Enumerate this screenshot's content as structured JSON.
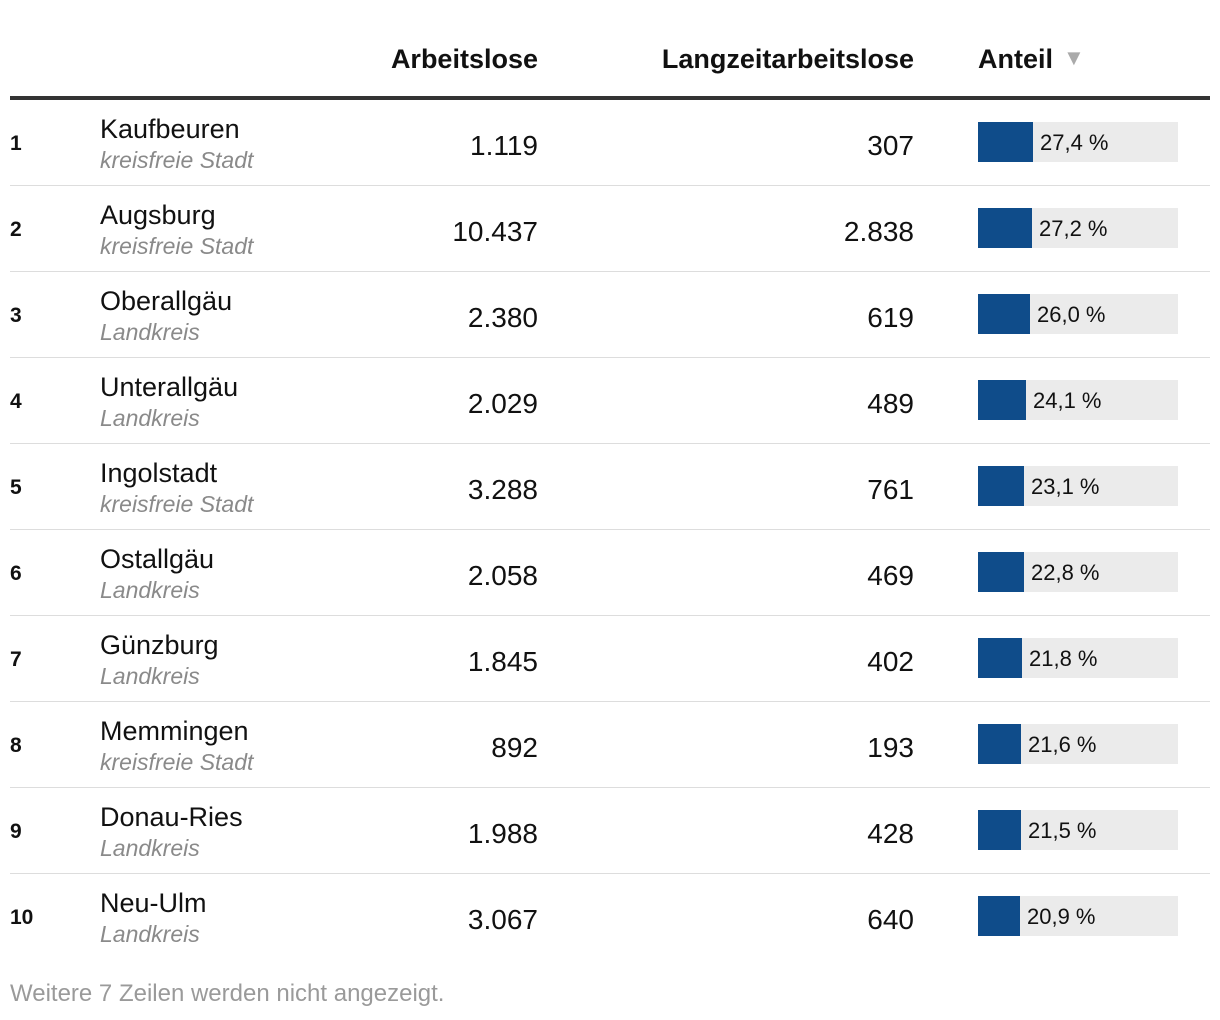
{
  "header": {
    "col_arbeitslose": "Arbeitslose",
    "col_langzeit": "Langzeitarbeitslose",
    "col_anteil": "Anteil",
    "sort_icon": "▼"
  },
  "colors": {
    "bar": "#0f4c8a",
    "track": "#ebebeb"
  },
  "rows": [
    {
      "rank": "1",
      "name": "Kaufbeuren",
      "type": "kreisfreie Stadt",
      "arbeitslose": "1.119",
      "langzeit": "307",
      "anteil_label": "27,4 %",
      "anteil_value": 27.4
    },
    {
      "rank": "2",
      "name": "Augsburg",
      "type": "kreisfreie Stadt",
      "arbeitslose": "10.437",
      "langzeit": "2.838",
      "anteil_label": "27,2 %",
      "anteil_value": 27.2
    },
    {
      "rank": "3",
      "name": "Oberallgäu",
      "type": "Landkreis",
      "arbeitslose": "2.380",
      "langzeit": "619",
      "anteil_label": "26,0 %",
      "anteil_value": 26.0
    },
    {
      "rank": "4",
      "name": "Unterallgäu",
      "type": "Landkreis",
      "arbeitslose": "2.029",
      "langzeit": "489",
      "anteil_label": "24,1 %",
      "anteil_value": 24.1
    },
    {
      "rank": "5",
      "name": "Ingolstadt",
      "type": "kreisfreie Stadt",
      "arbeitslose": "3.288",
      "langzeit": "761",
      "anteil_label": "23,1 %",
      "anteil_value": 23.1
    },
    {
      "rank": "6",
      "name": "Ostallgäu",
      "type": "Landkreis",
      "arbeitslose": "2.058",
      "langzeit": "469",
      "anteil_label": "22,8 %",
      "anteil_value": 22.8
    },
    {
      "rank": "7",
      "name": "Günzburg",
      "type": "Landkreis",
      "arbeitslose": "1.845",
      "langzeit": "402",
      "anteil_label": "21,8 %",
      "anteil_value": 21.8
    },
    {
      "rank": "8",
      "name": "Memmingen",
      "type": "kreisfreie Stadt",
      "arbeitslose": "892",
      "langzeit": "193",
      "anteil_label": "21,6 %",
      "anteil_value": 21.6
    },
    {
      "rank": "9",
      "name": "Donau-Ries",
      "type": "Landkreis",
      "arbeitslose": "1.988",
      "langzeit": "428",
      "anteil_label": "21,5 %",
      "anteil_value": 21.5
    },
    {
      "rank": "10",
      "name": "Neu-Ulm",
      "type": "Landkreis",
      "arbeitslose": "3.067",
      "langzeit": "640",
      "anteil_label": "20,9 %",
      "anteil_value": 20.9
    }
  ],
  "footnote": "Weitere 7 Zeilen werden nicht angezeigt.",
  "chart_data": {
    "type": "table",
    "columns": [
      "",
      "",
      "Arbeitslose",
      "Langzeitarbeitslose",
      "Anteil"
    ],
    "sort_column": "Anteil",
    "sort_order": "descending",
    "bar_scale_max": 100,
    "categories": [
      "Kaufbeuren",
      "Augsburg",
      "Oberallgäu",
      "Unterallgäu",
      "Ingolstadt",
      "Ostallgäu",
      "Günzburg",
      "Memmingen",
      "Donau-Ries",
      "Neu-Ulm"
    ],
    "series": [
      {
        "name": "Arbeitslose",
        "values": [
          1119,
          10437,
          2380,
          2029,
          3288,
          2058,
          1845,
          892,
          1988,
          3067
        ]
      },
      {
        "name": "Langzeitarbeitslose",
        "values": [
          307,
          2838,
          619,
          489,
          761,
          469,
          402,
          193,
          428,
          640
        ]
      },
      {
        "name": "Anteil",
        "values": [
          27.4,
          27.2,
          26.0,
          24.1,
          23.1,
          22.8,
          21.8,
          21.6,
          21.5,
          20.9
        ]
      }
    ]
  }
}
